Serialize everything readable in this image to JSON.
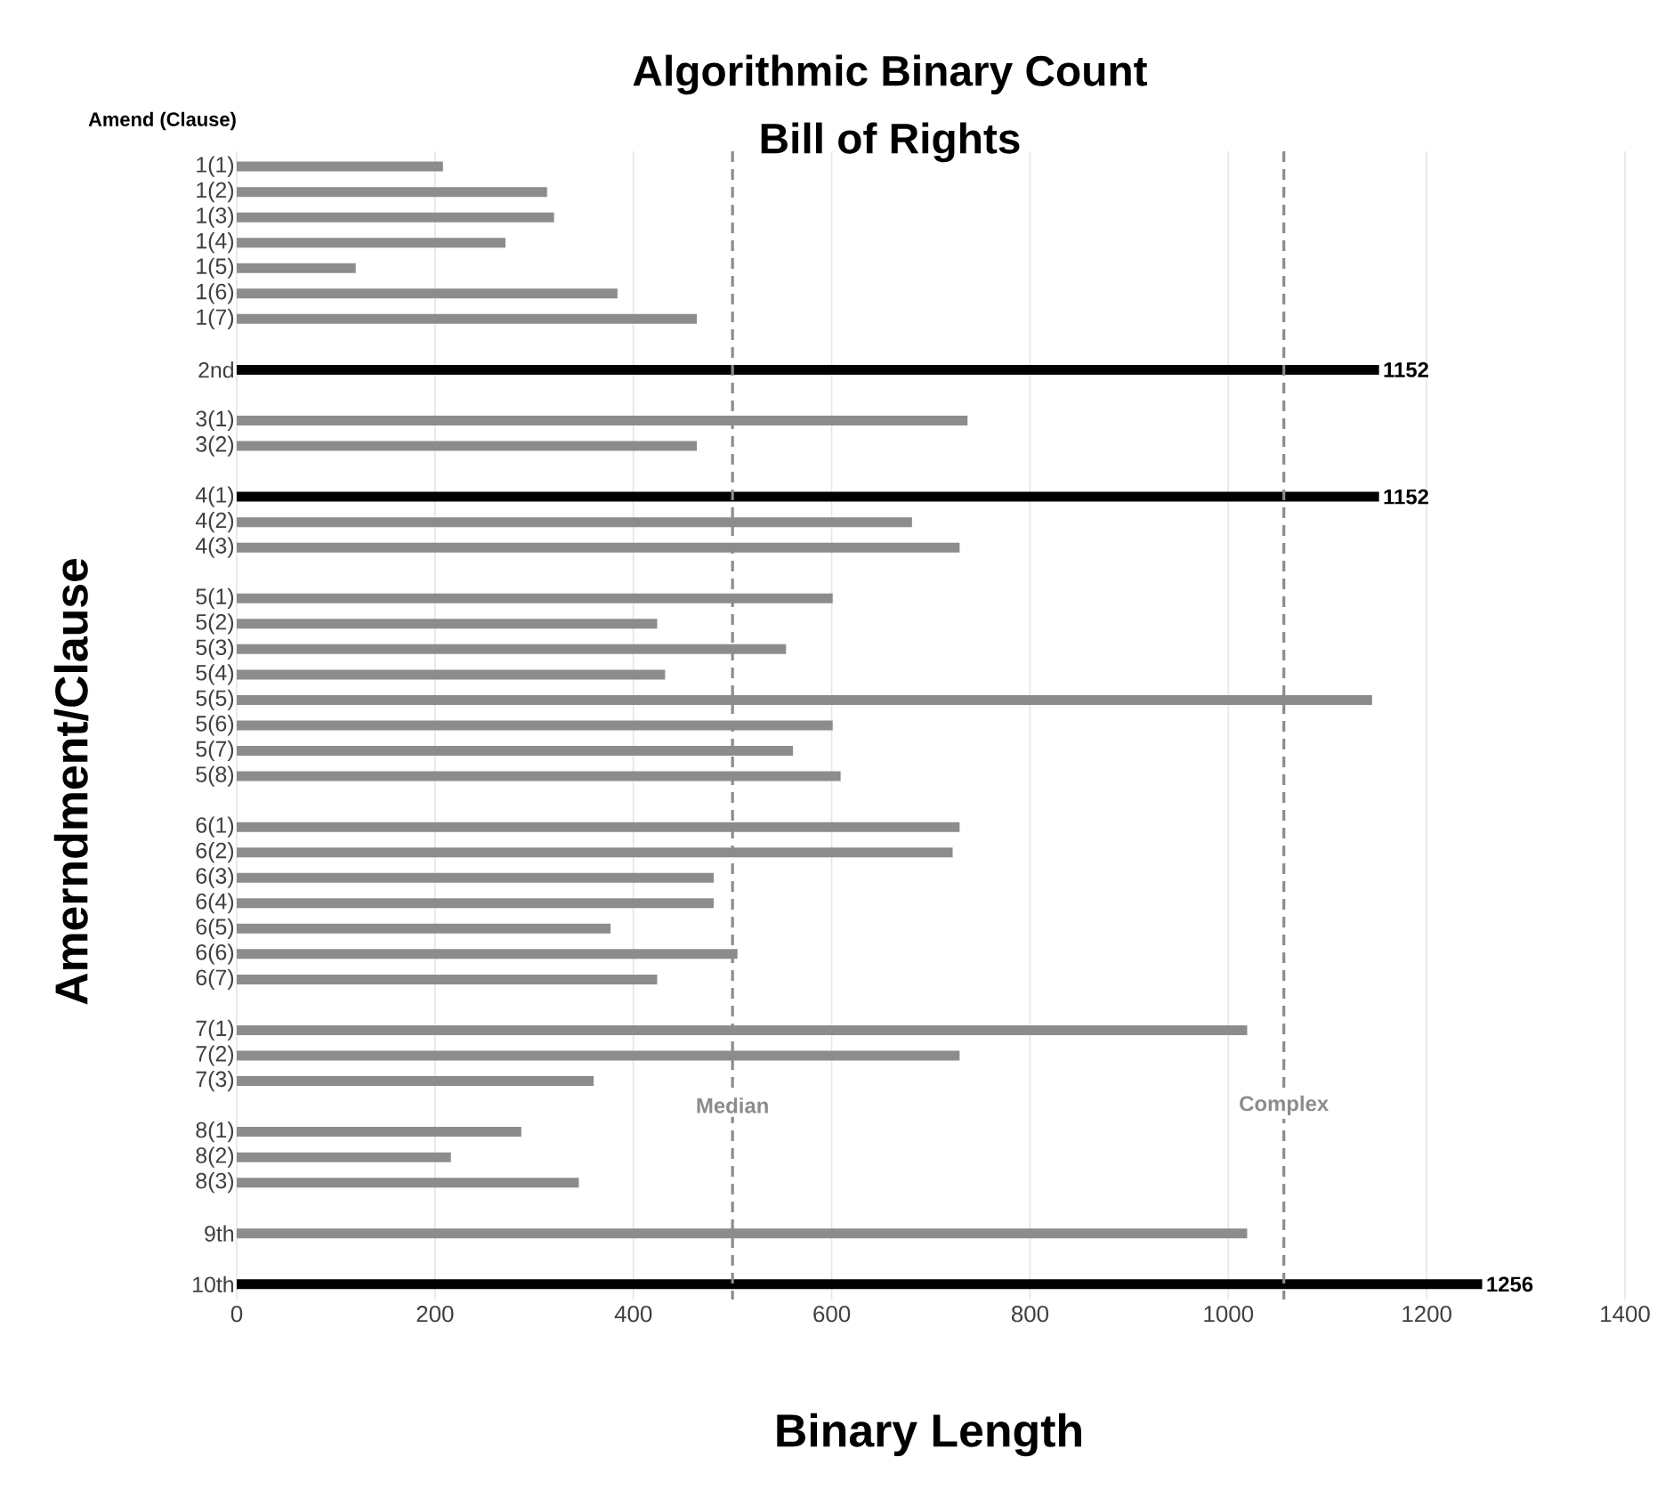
{
  "chart_data": {
    "type": "bar",
    "orientation": "horizontal",
    "title": "Algorithmic Binary Count",
    "subtitle": "Bill of Rights",
    "xlabel": "Binary Length",
    "ylabel": "Amerndment/Clause",
    "annotations": [
      "Amend (Clause)"
    ],
    "categories": [
      "1(1)",
      "1(2)",
      "1(3)",
      "1(4)",
      "1(5)",
      "1(6)",
      "1(7)",
      null,
      "2nd",
      null,
      "3(1)",
      "3(2)",
      null,
      "4(1)",
      "4(2)",
      "4(3)",
      null,
      "5(1)",
      "5(2)",
      "5(3)",
      "5(4)",
      "5(5)",
      "5(6)",
      "5(7)",
      "5(8)",
      null,
      "6(1)",
      "6(2)",
      "6(3)",
      "6(4)",
      "6(5)",
      "6(6)",
      "6(7)",
      null,
      "7(1)",
      "7(2)",
      "7(3)",
      null,
      "8(1)",
      "8(2)",
      "8(3)",
      null,
      "9th",
      null,
      "10th"
    ],
    "values": [
      208,
      313,
      320,
      271,
      120,
      384,
      464,
      null,
      1152,
      null,
      737,
      464,
      null,
      1152,
      681,
      729,
      null,
      601,
      424,
      554,
      432,
      1145,
      601,
      561,
      609,
      null,
      729,
      722,
      481,
      481,
      377,
      505,
      424,
      null,
      1019,
      729,
      360,
      null,
      287,
      216,
      345,
      null,
      1019,
      null,
      1256
    ],
    "colors": [
      "#8c8c8c",
      "#8c8c8c",
      "#8c8c8c",
      "#8c8c8c",
      "#8c8c8c",
      "#8c8c8c",
      "#8c8c8c",
      null,
      "#000000",
      null,
      "#8c8c8c",
      "#8c8c8c",
      null,
      "#000000",
      "#8c8c8c",
      "#8c8c8c",
      null,
      "#8c8c8c",
      "#8c8c8c",
      "#8c8c8c",
      "#8c8c8c",
      "#8c8c8c",
      "#8c8c8c",
      "#8c8c8c",
      "#8c8c8c",
      null,
      "#8c8c8c",
      "#8c8c8c",
      "#8c8c8c",
      "#8c8c8c",
      "#8c8c8c",
      "#8c8c8c",
      "#8c8c8c",
      null,
      "#8c8c8c",
      "#8c8c8c",
      "#8c8c8c",
      null,
      "#8c8c8c",
      "#8c8c8c",
      "#8c8c8c",
      null,
      "#8c8c8c",
      null,
      "#000000"
    ],
    "value_labels": [
      null,
      null,
      null,
      null,
      null,
      null,
      null,
      null,
      "1152",
      null,
      null,
      null,
      null,
      "1152",
      null,
      null,
      null,
      null,
      null,
      null,
      null,
      null,
      null,
      null,
      null,
      null,
      null,
      null,
      null,
      null,
      null,
      null,
      null,
      null,
      null,
      null,
      null,
      null,
      null,
      null,
      null,
      null,
      null,
      null,
      "1256"
    ],
    "xlim": [
      0,
      1400
    ],
    "xticks": [
      0,
      200,
      400,
      600,
      800,
      1000,
      1200,
      1400
    ],
    "grid": "x",
    "ref_lines": [
      {
        "axis": "x",
        "value": 500,
        "label": "Median",
        "color": "#8c8c8c",
        "line_style": "dashed"
      },
      {
        "axis": "x",
        "value": 1056,
        "label": "Complex",
        "color": "#8c8c8c",
        "line_style": "dashed"
      }
    ]
  }
}
